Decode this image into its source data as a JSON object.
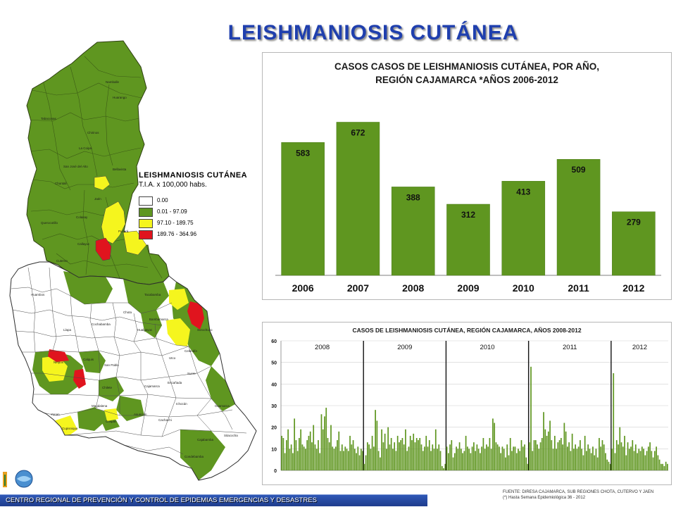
{
  "title": "LEISHMANIOSIS   CUTÁNEA",
  "legend": {
    "title": "LEISHMANIOSIS CUTÁNEA",
    "subtitle": "T.I.A. x 100,000 habs.",
    "items": [
      {
        "label": "0.00",
        "color": "#ffffff"
      },
      {
        "label": "0.01 - 97.09",
        "color": "#5f9620"
      },
      {
        "label": "97.10 - 189.75",
        "color": "#f5f51e"
      },
      {
        "label": "189.76 - 364.96",
        "color": "#e0141e"
      }
    ]
  },
  "map_labels": [
    "Namballe",
    "Tabaconas",
    "Chirinos",
    "Huarango",
    "La Coipa",
    "San José del Alto",
    "Chontali",
    "Bellavista",
    "Jaén",
    "Colasay",
    "Pucará",
    "Querocotillo",
    "Callayuc",
    "Cutervo",
    "Chota",
    "Tacabamba",
    "Cochabamba",
    "Hualgayoc",
    "Bambamarca",
    "Niepos",
    "Calquis",
    "Chilete",
    "San Pablo",
    "Magdalena",
    "Cajamarca",
    "Encañada",
    "Celendín",
    "Sucre",
    "Cospán",
    "Cachachi",
    "Cajabamba",
    "Sitacocha",
    "Condebamba",
    "Asunción",
    "Oxamarca",
    "Sorochuco",
    "Yonan",
    "Cupisnique",
    "Llapa",
    "Huambos",
    "Ichocán",
    "Utco"
  ],
  "annual_chart": {
    "chart_data": {
      "type": "bar",
      "title": "CASOS CASOS DE LEISHMANIOSIS CUTÁNEA, POR  AÑO,\nREGIÓN CAJAMARCA *AÑOS 2006-2012",
      "categories": [
        "2006",
        "2007",
        "2008",
        "2009",
        "2010",
        "2011",
        "2012"
      ],
      "values": [
        583,
        672,
        388,
        312,
        413,
        509,
        279
      ],
      "ylim": [
        0,
        760
      ],
      "color": "#5f9620",
      "grid": false
    }
  },
  "weekly_chart": {
    "chart_data": {
      "type": "bar",
      "title": "CASOS DE LEISHMANIOSIS CUTÁNEA, REGIÓN CAJAMARCA, AÑOS 2008-2012",
      "ylim": [
        0,
        60
      ],
      "yticks": [
        0,
        10,
        20,
        30,
        40,
        50,
        60
      ],
      "color": "#5f9620",
      "grid": true,
      "periods": [
        "2008",
        "2009",
        "2010",
        "2011",
        "2012"
      ],
      "series": [
        {
          "values": [
            16,
            15,
            8,
            14,
            19,
            10,
            12,
            8,
            24,
            14,
            9,
            15,
            19,
            12,
            11,
            10,
            14,
            16,
            18,
            13,
            21,
            12,
            10,
            14,
            8,
            26,
            19,
            25,
            29,
            15,
            13,
            21,
            11,
            10,
            11,
            14,
            18,
            9,
            12,
            9,
            11,
            10,
            9,
            16,
            12,
            14,
            10,
            8,
            11,
            7,
            10,
            9
          ]
        },
        {
          "values": [
            3,
            7,
            13,
            12,
            10,
            16,
            11,
            28,
            23,
            9,
            6,
            19,
            13,
            17,
            10,
            20,
            12,
            15,
            10,
            13,
            9,
            16,
            13,
            14,
            15,
            12,
            19,
            9,
            11,
            16,
            14,
            17,
            13,
            15,
            14,
            15,
            12,
            9,
            11,
            16,
            11,
            14,
            9,
            12,
            10,
            19,
            10,
            12,
            9,
            2,
            1,
            3
          ]
        },
        {
          "values": [
            11,
            8,
            12,
            14,
            6,
            8,
            11,
            10,
            13,
            10,
            8,
            9,
            16,
            11,
            10,
            8,
            11,
            13,
            9,
            12,
            10,
            8,
            11,
            15,
            10,
            12,
            11,
            15,
            10,
            24,
            22,
            13,
            12,
            11,
            8,
            11,
            10,
            6,
            12,
            7,
            15,
            9,
            11,
            11,
            8,
            10,
            9,
            14,
            11,
            12,
            6,
            3
          ]
        },
        {
          "values": [
            13,
            48,
            9,
            14,
            14,
            12,
            10,
            13,
            15,
            27,
            19,
            16,
            18,
            23,
            14,
            10,
            16,
            10,
            13,
            14,
            15,
            12,
            22,
            18,
            11,
            13,
            9,
            17,
            10,
            12,
            10,
            11,
            14,
            10,
            7,
            16,
            9,
            12,
            10,
            8,
            11,
            7,
            10,
            6,
            15,
            11,
            14,
            12,
            8,
            5,
            4,
            3
          ]
        },
        {
          "values": [
            10,
            45,
            8,
            14,
            12,
            20,
            13,
            11,
            16,
            7,
            13,
            10,
            11,
            14,
            9,
            12,
            8,
            10,
            9,
            11,
            10,
            7,
            9,
            11,
            13,
            9,
            6,
            9,
            11,
            7,
            5,
            3,
            3,
            2,
            4,
            3
          ]
        }
      ]
    }
  },
  "footer": "CENTRO REGIONAL DE PREVENCIÓN Y CONTROL DE EPIDEMIAS EMERGENCIAS Y DESASTRES",
  "source": {
    "line1": "FUENTE: DIRESA CAJAMARCA, SUB REGIONES CHOTA, CUTERVO Y JAEN",
    "line2": "(*) Hasta Semana Epidemiológica 36 - 2012"
  }
}
